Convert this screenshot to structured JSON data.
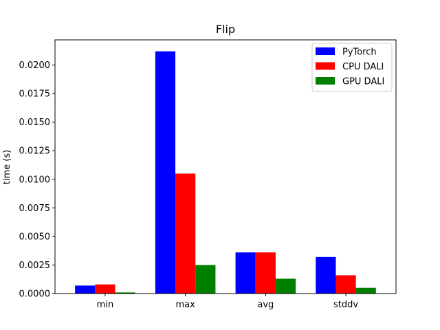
{
  "chart_data": {
    "type": "bar",
    "title": "Flip",
    "xlabel": "",
    "ylabel": "time (s)",
    "categories": [
      "min",
      "max",
      "avg",
      "stddv"
    ],
    "ylim": [
      0,
      0.0222
    ],
    "yticks": [
      "0.0000",
      "0.0025",
      "0.0050",
      "0.0075",
      "0.0100",
      "0.0125",
      "0.0150",
      "0.0175",
      "0.0200"
    ],
    "grid": false,
    "legend_position": "top-right",
    "series": [
      {
        "name": "PyTorch",
        "color": "#0000ff",
        "values": [
          0.0007,
          0.0212,
          0.0036,
          0.0032
        ]
      },
      {
        "name": "CPU DALI",
        "color": "#ff0000",
        "values": [
          0.0008,
          0.0105,
          0.0036,
          0.0016
        ]
      },
      {
        "name": "GPU DALI",
        "color": "#008000",
        "values": [
          0.0001,
          0.0025,
          0.0013,
          0.0005
        ]
      }
    ]
  }
}
